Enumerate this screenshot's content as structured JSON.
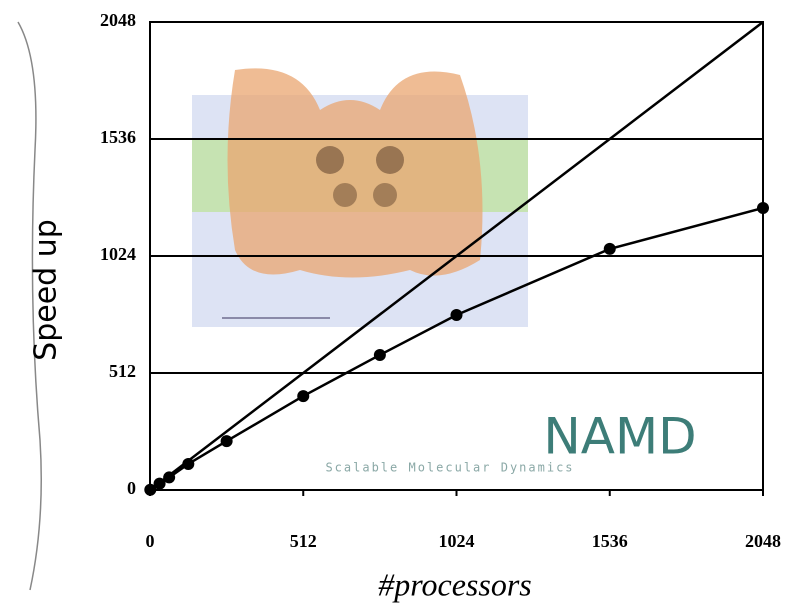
{
  "chart_data": {
    "type": "line",
    "xlabel": "#processors",
    "ylabel": "Speed up",
    "xlim": [
      0,
      2048
    ],
    "ylim": [
      0,
      2048
    ],
    "xticks": [
      0,
      512,
      1024,
      1536,
      2048
    ],
    "yticks": [
      0,
      512,
      1024,
      1536,
      2048
    ],
    "grid": true,
    "annotations": [
      "NAMD",
      "Scalable Molecular Dynamics"
    ],
    "series": [
      {
        "color": "#000000",
        "markers": false,
        "x": [
          0,
          2048
        ],
        "values": [
          0,
          2048
        ]
      },
      {
        "color": "#000000",
        "markers": true,
        "x": [
          1,
          32,
          64,
          128,
          256,
          512,
          768,
          1024,
          1536,
          2048
        ],
        "values": [
          1,
          28,
          55,
          114,
          214,
          411,
          591,
          766,
          1055,
          1234
        ]
      }
    ]
  }
}
